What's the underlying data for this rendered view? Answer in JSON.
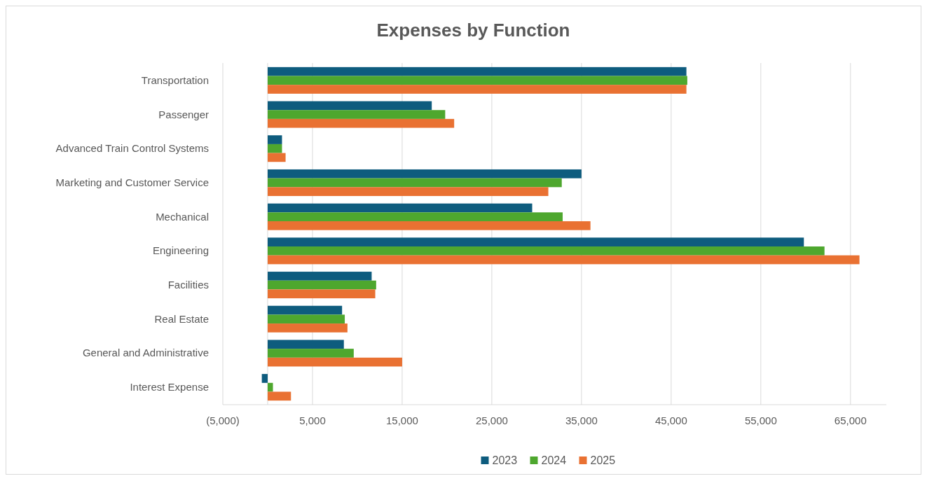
{
  "chart_data": {
    "type": "bar",
    "orientation": "horizontal",
    "title": "Expenses by Function",
    "categories": [
      "Transportation",
      "Passenger",
      "Advanced Train Control Systems",
      "Marketing and Customer Service",
      "Mechanical",
      "Engineering",
      "Facilities",
      "Real Estate",
      "General and Administrative",
      "Interest Expense"
    ],
    "series": [
      {
        "name": "2023",
        "color": "#0e5c7e",
        "values": [
          46700,
          18300,
          1600,
          35000,
          29500,
          59800,
          11600,
          8300,
          8500,
          -650
        ]
      },
      {
        "name": "2024",
        "color": "#4ea72e",
        "values": [
          46800,
          19800,
          1600,
          32800,
          32900,
          62100,
          12100,
          8600,
          9600,
          590
        ]
      },
      {
        "name": "2025",
        "color": "#e97132",
        "values": [
          46700,
          20800,
          2000,
          31300,
          36000,
          66000,
          12000,
          8900,
          15000,
          2600
        ]
      }
    ],
    "xlim": [
      -5000,
      69000
    ],
    "xticks": [
      {
        "value": -5000,
        "label": "(5,000)"
      },
      {
        "value": 5000,
        "label": "5,000"
      },
      {
        "value": 15000,
        "label": "15,000"
      },
      {
        "value": 25000,
        "label": "25,000"
      },
      {
        "value": 35000,
        "label": "35,000"
      },
      {
        "value": 45000,
        "label": "45,000"
      },
      {
        "value": 55000,
        "label": "55,000"
      },
      {
        "value": 65000,
        "label": "65,000"
      }
    ],
    "grid": "x",
    "legend": "bottom"
  }
}
